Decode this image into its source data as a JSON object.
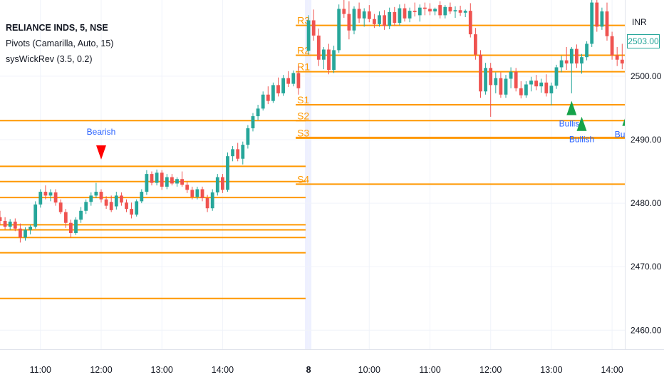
{
  "header": {
    "symbol": "RELIANCE INDS, 5, NSE",
    "indicator1": "Pivots (Camarilla, Auto, 15)",
    "indicator2": "sysWickRev (3.5, 0.2)",
    "currency": "INR",
    "current_price": "2503.00"
  },
  "colors": {
    "up": "#26a69a",
    "down": "#ef5350",
    "pivot": "#ff9800",
    "bull_marker": "#16a34a",
    "bear_marker": "#ff0000",
    "signal_text": "#2962ff",
    "grid": "#f0f3fa",
    "session_band": "#eef0ff"
  },
  "chart_data": {
    "type": "candlestick",
    "ylim": [
      2457,
      2512
    ],
    "y_ticks": [
      "2460.00",
      "2470.00",
      "2480.00",
      "2490.00",
      "2500.00"
    ],
    "y_tick_values": [
      2460,
      2470,
      2480,
      2490,
      2500
    ],
    "x_ticks": [
      {
        "label": "11:00",
        "i": 8
      },
      {
        "label": "12:00",
        "i": 20
      },
      {
        "label": "13:00",
        "i": 32
      },
      {
        "label": "14:00",
        "i": 44
      },
      {
        "label": "8",
        "i": 61
      },
      {
        "label": "10:00",
        "i": 73
      },
      {
        "label": "11:00",
        "i": 85
      },
      {
        "label": "12:00",
        "i": 97
      },
      {
        "label": "13:00",
        "i": 109
      },
      {
        "label": "14:00",
        "i": 121
      }
    ],
    "session_break_index": 61,
    "candles_day1": [
      [
        2477.8,
        2478.8,
        2476.6,
        2477.2
      ],
      [
        2477.2,
        2477.8,
        2475.9,
        2476.3
      ],
      [
        2476.3,
        2477.5,
        2475.8,
        2477.1
      ],
      [
        2477.1,
        2477.6,
        2475.6,
        2476.0
      ],
      [
        2476.0,
        2476.8,
        2473.8,
        2474.6
      ],
      [
        2474.6,
        2476.2,
        2474.1,
        2475.8
      ],
      [
        2475.8,
        2476.6,
        2475.1,
        2476.3
      ],
      [
        2476.3,
        2480.3,
        2476.0,
        2479.8
      ],
      [
        2479.8,
        2482.2,
        2479.3,
        2481.8
      ],
      [
        2481.8,
        2482.8,
        2480.6,
        2481.2
      ],
      [
        2481.2,
        2482.2,
        2480.3,
        2481.7
      ],
      [
        2481.7,
        2482.2,
        2479.6,
        2480.1
      ],
      [
        2480.1,
        2480.6,
        2478.3,
        2478.6
      ],
      [
        2478.6,
        2479.1,
        2476.1,
        2476.9
      ],
      [
        2476.9,
        2477.4,
        2474.6,
        2475.3
      ],
      [
        2475.3,
        2477.8,
        2475.0,
        2477.4
      ],
      [
        2477.4,
        2479.4,
        2476.9,
        2478.8
      ],
      [
        2478.8,
        2480.6,
        2478.3,
        2480.2
      ],
      [
        2480.2,
        2481.7,
        2479.6,
        2481.2
      ],
      [
        2481.2,
        2483.2,
        2480.8,
        2481.8
      ],
      [
        2481.8,
        2482.2,
        2480.1,
        2480.6
      ],
      [
        2480.6,
        2481.1,
        2479.1,
        2479.6
      ],
      [
        2480.2,
        2481.2,
        2478.6,
        2478.9
      ],
      [
        2479.5,
        2481.8,
        2479.0,
        2481.2
      ],
      [
        2481.2,
        2481.7,
        2479.6,
        2480.1
      ],
      [
        2480.1,
        2480.6,
        2478.6,
        2479.1
      ],
      [
        2479.1,
        2480.1,
        2477.6,
        2478.2
      ],
      [
        2478.2,
        2480.6,
        2477.9,
        2480.3
      ],
      [
        2480.3,
        2482.2,
        2480.0,
        2481.8
      ],
      [
        2481.8,
        2485.2,
        2481.3,
        2484.6
      ],
      [
        2484.6,
        2485.0,
        2482.8,
        2483.2
      ],
      [
        2483.2,
        2485.3,
        2482.8,
        2484.8
      ],
      [
        2484.8,
        2485.2,
        2482.1,
        2482.6
      ],
      [
        2482.6,
        2484.6,
        2482.2,
        2484.1
      ],
      [
        2484.1,
        2484.6,
        2482.8,
        2483.1
      ],
      [
        2483.1,
        2484.1,
        2482.6,
        2483.8
      ],
      [
        2483.8,
        2485.0,
        2482.6,
        2482.9
      ],
      [
        2482.9,
        2483.4,
        2481.6,
        2482.1
      ],
      [
        2482.1,
        2482.6,
        2480.6,
        2481.0
      ],
      [
        2481.0,
        2482.6,
        2480.6,
        2482.2
      ],
      [
        2482.2,
        2482.6,
        2480.3,
        2480.8
      ],
      [
        2480.8,
        2481.3,
        2478.6,
        2479.2
      ],
      [
        2479.2,
        2482.2,
        2478.8,
        2481.7
      ],
      [
        2481.7,
        2484.6,
        2481.2,
        2484.1
      ],
      [
        2484.1,
        2484.6,
        2481.6,
        2482.1
      ],
      [
        2482.1,
        2488.0,
        2481.8,
        2487.4
      ],
      [
        2487.4,
        2489.0,
        2486.6,
        2488.5
      ],
      [
        2488.5,
        2489.5,
        2486.6,
        2487.0
      ],
      [
        2487.0,
        2489.7,
        2486.1,
        2489.2
      ],
      [
        2489.2,
        2492.3,
        2488.6,
        2491.8
      ],
      [
        2491.8,
        2494.2,
        2491.3,
        2493.7
      ],
      [
        2493.7,
        2495.5,
        2493.1,
        2494.9
      ],
      [
        2494.9,
        2497.6,
        2494.6,
        2497.1
      ],
      [
        2497.1,
        2498.4,
        2495.6,
        2496.1
      ],
      [
        2496.1,
        2499.0,
        2495.8,
        2498.6
      ],
      [
        2498.6,
        2499.8,
        2496.8,
        2497.3
      ],
      [
        2497.3,
        2500.2,
        2496.9,
        2499.7
      ],
      [
        2499.7,
        2500.8,
        2498.3,
        2498.8
      ],
      [
        2498.8,
        2500.9,
        2498.4,
        2500.5
      ],
      [
        2500.5,
        2501.6,
        2497.1,
        2498.1
      ]
    ],
    "candles_day2": [
      [
        2504.0,
        2509.6,
        2503.4,
        2508.8
      ],
      [
        2508.8,
        2510.5,
        2505.6,
        2506.4
      ],
      [
        2506.4,
        2507.5,
        2501.6,
        2502.6
      ],
      [
        2502.6,
        2504.6,
        2501.1,
        2504.2
      ],
      [
        2504.2,
        2505.1,
        2500.3,
        2501.0
      ],
      [
        2501.0,
        2504.8,
        2500.5,
        2504.1
      ],
      [
        2504.1,
        2511.3,
        2503.7,
        2510.6
      ],
      [
        2510.6,
        2512.6,
        2509.2,
        2509.8
      ],
      [
        2509.8,
        2511.8,
        2505.8,
        2507.2
      ],
      [
        2507.2,
        2511.0,
        2506.6,
        2510.6
      ],
      [
        2510.6,
        2511.6,
        2508.4,
        2509.1
      ],
      [
        2509.1,
        2510.7,
        2507.8,
        2510.2
      ],
      [
        2510.2,
        2511.2,
        2508.5,
        2509.0
      ],
      [
        2509.0,
        2509.8,
        2507.6,
        2508.2
      ],
      [
        2508.2,
        2510.2,
        2507.8,
        2509.6
      ],
      [
        2509.6,
        2510.4,
        2507.3,
        2507.9
      ],
      [
        2507.9,
        2510.8,
        2507.4,
        2510.1
      ],
      [
        2510.1,
        2510.9,
        2507.9,
        2508.4
      ],
      [
        2508.4,
        2511.3,
        2508.0,
        2510.7
      ],
      [
        2510.7,
        2511.4,
        2508.6,
        2509.1
      ],
      [
        2509.1,
        2510.8,
        2508.5,
        2510.3
      ],
      [
        2510.3,
        2511.6,
        2509.4,
        2510.1
      ],
      [
        2509.6,
        2511.3,
        2508.6,
        2510.8
      ],
      [
        2510.8,
        2511.6,
        2509.6,
        2510.6
      ],
      [
        2510.6,
        2511.5,
        2509.6,
        2510.2
      ],
      [
        2510.2,
        2510.8,
        2509.6,
        2510.6
      ],
      [
        2511.2,
        2511.8,
        2509.1,
        2509.6
      ],
      [
        2509.6,
        2511.2,
        2509.1,
        2510.9
      ],
      [
        2510.9,
        2511.6,
        2509.8,
        2510.2
      ],
      [
        2510.2,
        2511.0,
        2509.2,
        2510.4
      ],
      [
        2510.4,
        2511.1,
        2509.5,
        2510.0
      ],
      [
        2510.0,
        2510.5,
        2509.3,
        2510.3
      ],
      [
        2510.3,
        2511.5,
        2506.1,
        2506.6
      ],
      [
        2506.6,
        2507.6,
        2502.6,
        2503.4
      ],
      [
        2503.4,
        2504.1,
        2496.6,
        2497.6
      ],
      [
        2497.6,
        2502.1,
        2497.1,
        2501.3
      ],
      [
        2501.3,
        2502.1,
        2493.6,
        2498.6
      ],
      [
        2498.6,
        2500.6,
        2497.3,
        2499.7
      ],
      [
        2499.7,
        2500.6,
        2496.6,
        2497.1
      ],
      [
        2497.1,
        2500.2,
        2496.6,
        2499.6
      ],
      [
        2499.6,
        2501.4,
        2498.1,
        2500.7
      ],
      [
        2500.7,
        2501.3,
        2497.6,
        2498.1
      ],
      [
        2498.1,
        2499.2,
        2496.5,
        2497.0
      ],
      [
        2497.0,
        2499.2,
        2496.6,
        2498.7
      ],
      [
        2498.7,
        2499.9,
        2497.6,
        2499.3
      ],
      [
        2499.3,
        2500.2,
        2497.8,
        2498.4
      ],
      [
        2498.4,
        2499.6,
        2497.4,
        2499.0
      ],
      [
        2499.0,
        2500.3,
        2496.8,
        2497.3
      ],
      [
        2497.3,
        2499.0,
        2495.4,
        2498.5
      ],
      [
        2498.5,
        2501.8,
        2498.0,
        2501.4
      ],
      [
        2501.4,
        2503.2,
        2500.6,
        2502.5
      ],
      [
        2502.5,
        2504.6,
        2501.0,
        2502.0
      ],
      [
        2502.0,
        2504.6,
        2497.3,
        2504.3
      ],
      [
        2504.3,
        2505.0,
        2501.3,
        2502.0
      ],
      [
        2502.0,
        2503.5,
        2500.4,
        2503.0
      ],
      [
        2503.0,
        2505.5,
        2502.5,
        2505.1
      ],
      [
        2505.1,
        2512.6,
        2504.6,
        2511.6
      ],
      [
        2511.6,
        2512.2,
        2507.0,
        2507.8
      ],
      [
        2507.8,
        2510.8,
        2507.3,
        2510.2
      ],
      [
        2510.2,
        2511.6,
        2505.6,
        2506.3
      ],
      [
        2506.3,
        2507.0,
        2502.6,
        2503.3
      ],
      [
        2503.3,
        2504.6,
        2501.6,
        2502.6
      ],
      [
        2502.6,
        2505.1,
        2501.1,
        2502.0
      ],
      [
        2502.6,
        2504.6,
        2497.4,
        2503.0
      ]
    ],
    "pivots_day1": [
      2493.0,
      2485.8,
      2483.4,
      2480.9,
      2476.6,
      2475.8,
      2474.6,
      2472.2,
      2465.0
    ],
    "pivots_day2": [
      {
        "label": "R3",
        "value": 2508.0
      },
      {
        "label": "R2",
        "value": 2503.3
      },
      {
        "label": "R1",
        "value": 2500.7
      },
      {
        "label": "S1",
        "value": 2495.5
      },
      {
        "label": "S2",
        "value": 2493.0
      },
      {
        "label": "S3",
        "value": 2490.3
      },
      {
        "label": "S4",
        "value": 2483.0
      }
    ],
    "signals": [
      {
        "type": "bearish",
        "label": "Bearish",
        "i": 20,
        "value": 2488.0
      },
      {
        "type": "bullish",
        "label": "Bullish",
        "i": 113,
        "value": 2495.0
      },
      {
        "type": "bullish",
        "label": "Bullish",
        "i": 115,
        "value": 2492.5
      },
      {
        "type": "bullish",
        "label": "Bullish",
        "i": 124,
        "value": 2493.3
      }
    ]
  }
}
